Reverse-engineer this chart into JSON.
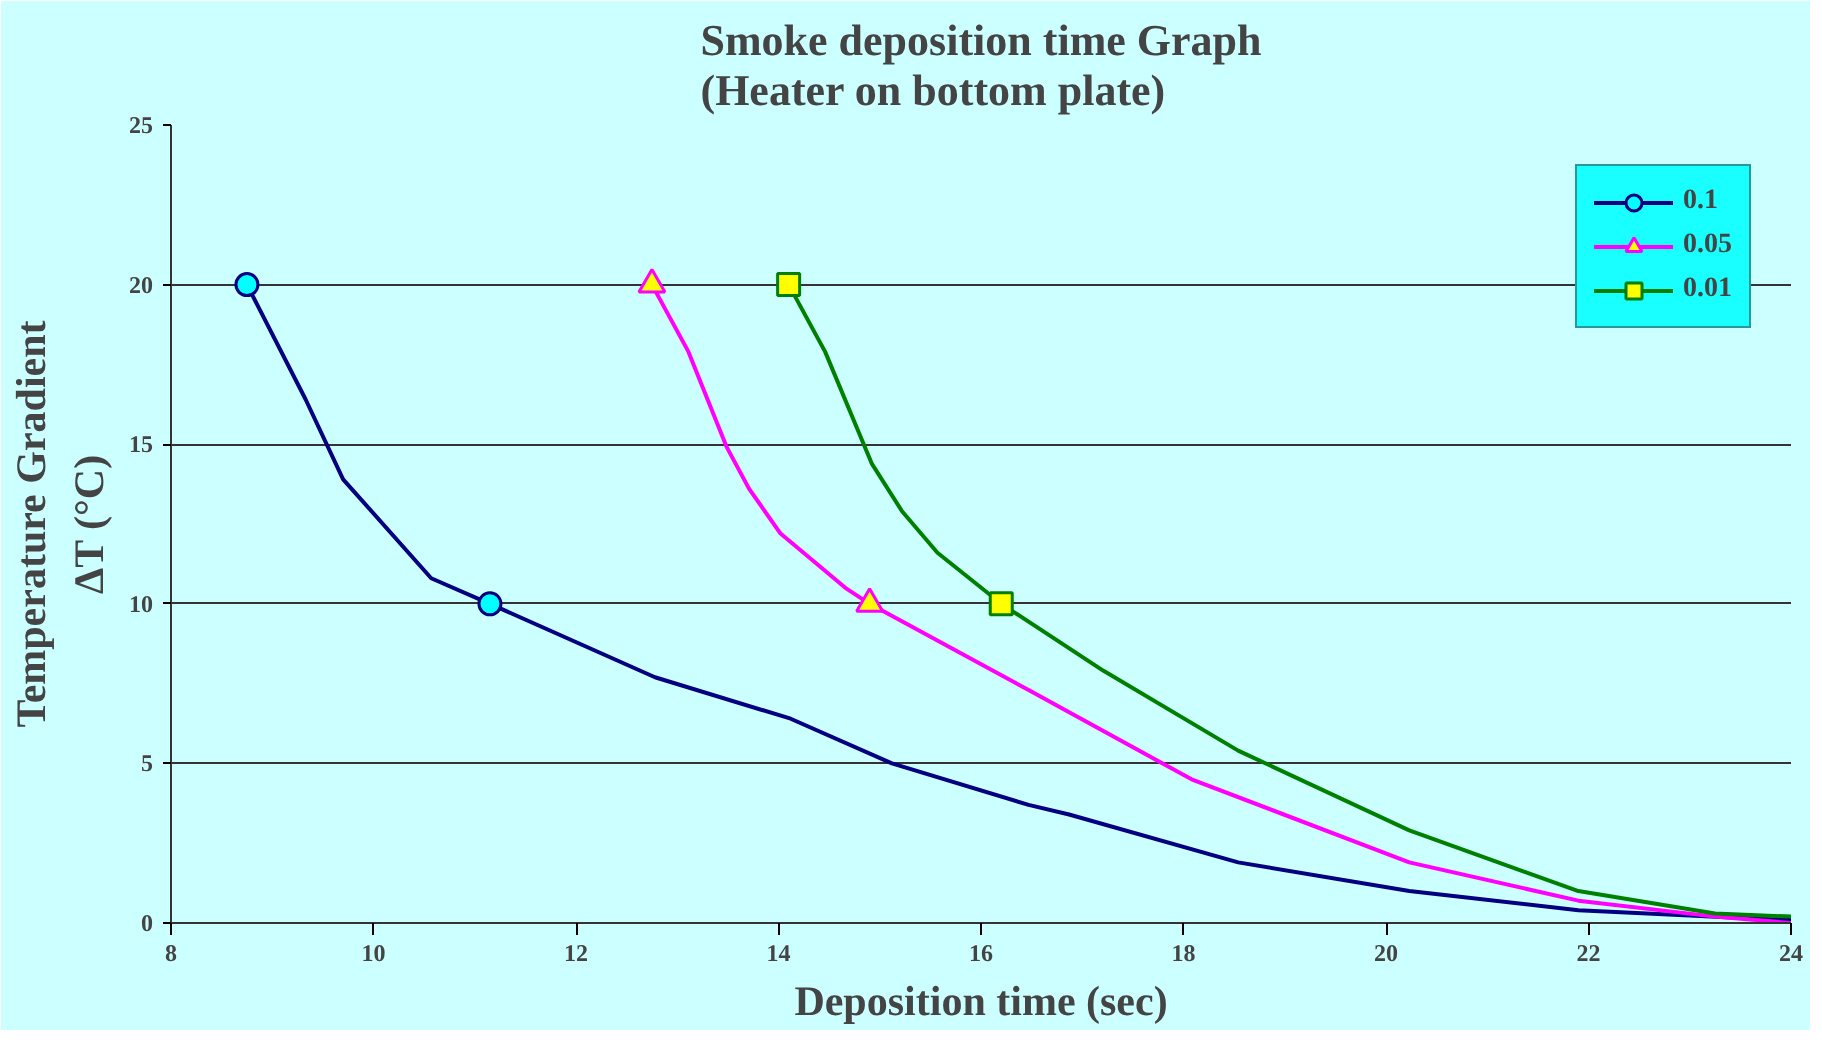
{
  "chart_data": {
    "type": "line",
    "title": "Smoke deposition time Graph\n(Heater on bottom plate)",
    "xlabel": "Deposition time (sec)",
    "ylabel": "Temperature Gradient\nΔT (°C)",
    "xlim": [
      8,
      24
    ],
    "xticks": [
      8,
      10,
      12,
      14,
      16,
      18,
      20,
      22,
      24
    ],
    "ylim": [
      0,
      25
    ],
    "yticks": [
      0,
      5,
      10,
      15,
      20,
      25
    ],
    "grid": "y",
    "legend": "top right",
    "series": [
      {
        "name": "0.1",
        "color": "#000080",
        "marker": "none",
        "x": [
          8.75,
          9.33,
          9.7,
          10.57,
          11.15,
          12.78,
          14.12,
          15.12,
          16.47,
          16.87,
          18.54,
          20.23,
          21.9,
          23.57,
          24
        ],
        "values": [
          20,
          16.4,
          13.9,
          10.8,
          10,
          7.7,
          6.4,
          5,
          3.7,
          3.4,
          1.9,
          1,
          0.4,
          0.15,
          0.1
        ]
      },
      {
        "type": "scatter",
        "color": "#00ffff",
        "marker": "circle",
        "x": [
          8.75,
          11.15
        ],
        "values": [
          20,
          10
        ]
      },
      {
        "name": "0.05",
        "color": "#ff00ff",
        "marker": "none",
        "x": [
          12.75,
          13.11,
          13.49,
          13.71,
          14.02,
          14.66,
          14.9,
          16.47,
          18.08,
          20.23,
          21.9,
          23.25,
          24
        ],
        "values": [
          20,
          17.9,
          14.9,
          13.6,
          12.2,
          10.5,
          10,
          7.3,
          4.5,
          1.9,
          0.7,
          0.2,
          0
        ]
      },
      {
        "type": "scatter",
        "color": "#ffff00",
        "marker": "triangle",
        "x": [
          12.75,
          14.9
        ],
        "values": [
          20,
          10
        ]
      },
      {
        "name": "0.01",
        "color": "#008000",
        "marker": "none",
        "x": [
          14.1,
          14.46,
          14.92,
          15.22,
          15.57,
          16.2,
          17.21,
          18.54,
          20.23,
          21.9,
          23.25,
          24
        ],
        "values": [
          20,
          17.9,
          14.4,
          12.9,
          11.6,
          10,
          7.9,
          5.4,
          2.9,
          1,
          0.3,
          0.2
        ]
      },
      {
        "type": "scatter",
        "color": "#ffff00",
        "marker": "square",
        "x": [
          14.1,
          16.2
        ],
        "values": [
          20,
          10
        ]
      }
    ]
  }
}
